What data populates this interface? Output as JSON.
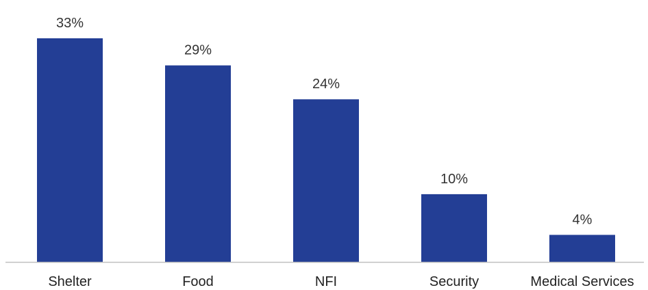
{
  "chart_data": {
    "type": "bar",
    "title": "",
    "xlabel": "",
    "ylabel": "",
    "categories": [
      "Shelter",
      "Food",
      "NFI",
      "Security",
      "Medical Services"
    ],
    "values": [
      33,
      29,
      24,
      10,
      4
    ],
    "value_labels": [
      "33%",
      "29%",
      "24%",
      "10%",
      "4%"
    ],
    "unit": "%",
    "ylim": [
      0,
      33
    ],
    "grid": false,
    "legend": "none",
    "colors": {
      "bar": "#233E95",
      "axis": "#bfbfbf"
    }
  }
}
